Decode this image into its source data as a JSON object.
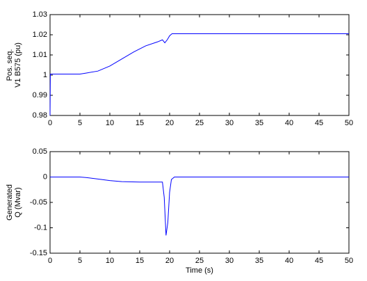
{
  "chart_data": [
    {
      "type": "line",
      "ylabel": [
        "Pos. seq.",
        "V1 B575 (pu)"
      ],
      "xlim": [
        0,
        50
      ],
      "xticks": [
        0,
        5,
        10,
        15,
        20,
        25,
        30,
        35,
        40,
        45,
        50
      ],
      "ylim": [
        0.98,
        1.03
      ],
      "yticks": [
        0.98,
        0.99,
        1,
        1.01,
        1.02,
        1.03
      ],
      "series": [
        {
          "color": "#0000ff",
          "x": [
            0,
            0.05,
            5,
            6,
            8,
            10,
            12,
            14,
            16,
            18,
            18.8,
            19.2,
            19.6,
            20,
            20.4,
            50
          ],
          "values": [
            0.98,
            1.0005,
            1.0005,
            1.001,
            1.002,
            1.0045,
            1.008,
            1.0115,
            1.0145,
            1.0165,
            1.0175,
            1.016,
            1.0175,
            1.0195,
            1.0205,
            1.0205
          ]
        }
      ]
    },
    {
      "type": "line",
      "ylabel": [
        "Generated",
        "Q (Mvar)"
      ],
      "xlabel": "Time (s)",
      "xlim": [
        0,
        50
      ],
      "xticks": [
        0,
        5,
        10,
        15,
        20,
        25,
        30,
        35,
        40,
        45,
        50
      ],
      "ylim": [
        -0.15,
        0.05
      ],
      "yticks": [
        -0.15,
        -0.1,
        -0.05,
        0,
        0.05
      ],
      "series": [
        {
          "color": "#0000ff",
          "x": [
            0,
            5,
            6,
            8,
            10,
            12,
            15,
            18.8,
            19.1,
            19.4,
            19.7,
            20,
            20.3,
            20.8,
            50
          ],
          "values": [
            0,
            0,
            -0.001,
            -0.004,
            -0.007,
            -0.009,
            -0.01,
            -0.01,
            -0.04,
            -0.115,
            -0.09,
            -0.03,
            -0.005,
            0,
            0
          ]
        }
      ]
    }
  ]
}
